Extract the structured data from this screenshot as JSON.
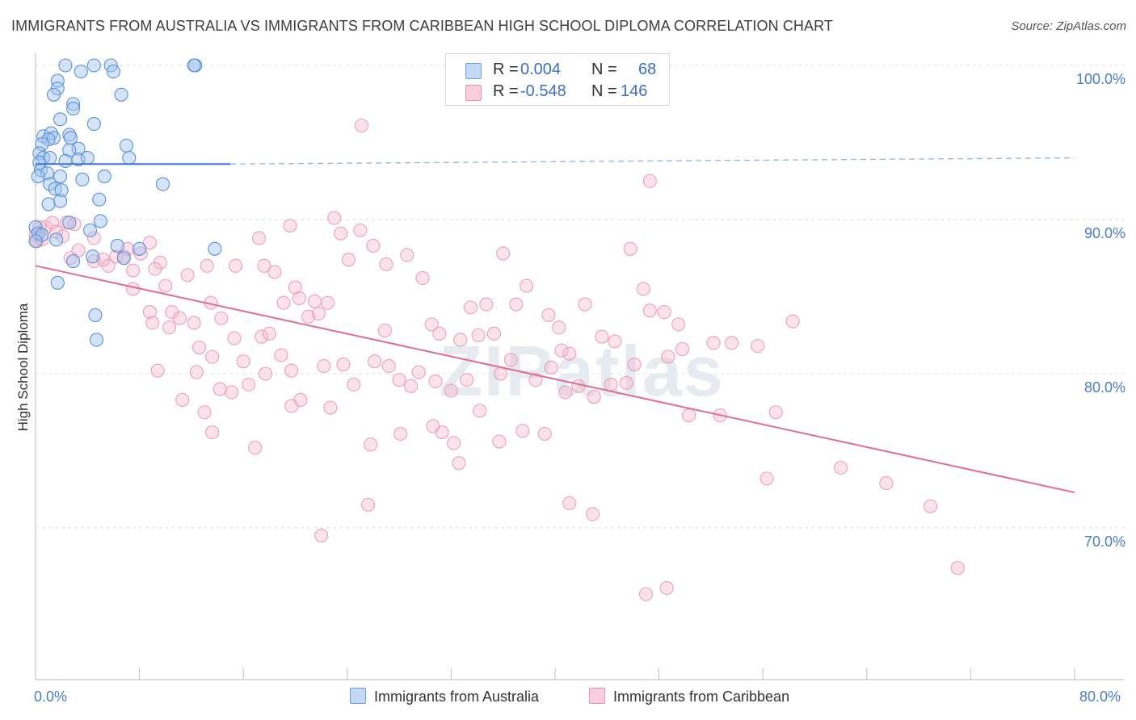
{
  "title": "IMMIGRANTS FROM AUSTRALIA VS IMMIGRANTS FROM CARIBBEAN HIGH SCHOOL DIPLOMA CORRELATION CHART",
  "source": "Source: ZipAtlas.com",
  "watermark": "ZIPatlas",
  "legend": {
    "r_label": "R =",
    "n_label": "N =",
    "rows": [
      {
        "r": "0.004",
        "n": "68",
        "fill": "#c5d9f5",
        "stroke": "#6a9ee0"
      },
      {
        "r": "-0.548",
        "n": "146",
        "fill": "#f9cfdc",
        "stroke": "#e88fab"
      }
    ]
  },
  "bottom_legend": [
    "Immigrants from Australia",
    "Immigrants from Caribbean"
  ],
  "chart_data": {
    "type": "scatter",
    "title": "IMMIGRANTS FROM AUSTRALIA VS IMMIGRANTS FROM CARIBBEAN HIGH SCHOOL DIPLOMA CORRELATION CHART",
    "xlabel": "",
    "ylabel": "High School Diploma",
    "xlim": [
      0,
      80
    ],
    "ylim": [
      60,
      103
    ],
    "x_tick_labels": [
      "0.0%",
      "80.0%"
    ],
    "y_ticks": [
      70,
      80,
      90,
      100
    ],
    "y_tick_labels": [
      "70.0%",
      "80.0%",
      "90.0%",
      "100.0%"
    ],
    "grid": true,
    "legend_position": "top-center",
    "colors": {
      "australia": "#4a86d8",
      "caribbean": "#e87aa0"
    },
    "series": [
      {
        "name": "Immigrants from Australia",
        "color": "#4a86d8",
        "trend": {
          "x0": 0,
          "y0": 93.6,
          "x1": 15,
          "y1": 93.6,
          "dash_to_x": 80,
          "dash_to_y": 94.0
        },
        "points": [
          [
            2.3,
            100.0
          ],
          [
            4.5,
            100.0
          ],
          [
            5.8,
            100.0
          ],
          [
            6.0,
            99.6
          ],
          [
            3.5,
            99.6
          ],
          [
            1.7,
            99.0
          ],
          [
            1.7,
            98.5
          ],
          [
            1.4,
            98.1
          ],
          [
            2.9,
            97.5
          ],
          [
            2.9,
            97.2
          ],
          [
            6.6,
            98.1
          ],
          [
            12.3,
            100.0
          ],
          [
            12.2,
            100.0
          ],
          [
            1.9,
            96.5
          ],
          [
            4.5,
            96.2
          ],
          [
            0.6,
            95.4
          ],
          [
            1.2,
            95.6
          ],
          [
            1.4,
            95.3
          ],
          [
            2.6,
            95.5
          ],
          [
            2.7,
            95.3
          ],
          [
            1.0,
            95.2
          ],
          [
            0.5,
            94.9
          ],
          [
            0.3,
            94.3
          ],
          [
            3.3,
            94.6
          ],
          [
            2.6,
            94.5
          ],
          [
            7.0,
            94.8
          ],
          [
            7.2,
            94.0
          ],
          [
            0.6,
            94.0
          ],
          [
            1.1,
            94.0
          ],
          [
            0.3,
            93.7
          ],
          [
            2.3,
            93.8
          ],
          [
            3.3,
            93.9
          ],
          [
            4.0,
            94.0
          ],
          [
            0.4,
            93.2
          ],
          [
            0.9,
            93.0
          ],
          [
            1.9,
            92.8
          ],
          [
            3.6,
            92.6
          ],
          [
            5.3,
            92.8
          ],
          [
            9.8,
            92.3
          ],
          [
            0.2,
            92.8
          ],
          [
            1.1,
            92.3
          ],
          [
            1.5,
            92.0
          ],
          [
            2.0,
            91.9
          ],
          [
            1.9,
            91.2
          ],
          [
            4.9,
            91.3
          ],
          [
            1.0,
            91.0
          ],
          [
            0.0,
            89.5
          ],
          [
            0.2,
            89.1
          ],
          [
            0.5,
            89.0
          ],
          [
            1.6,
            88.7
          ],
          [
            2.6,
            89.8
          ],
          [
            5.0,
            89.9
          ],
          [
            4.2,
            89.3
          ],
          [
            0.0,
            88.6
          ],
          [
            6.3,
            88.3
          ],
          [
            8.0,
            88.1
          ],
          [
            13.8,
            88.1
          ],
          [
            4.4,
            87.6
          ],
          [
            2.9,
            87.3
          ],
          [
            6.8,
            87.5
          ],
          [
            1.7,
            85.9
          ],
          [
            4.6,
            83.8
          ],
          [
            4.7,
            82.2
          ]
        ]
      },
      {
        "name": "Immigrants from Caribbean",
        "color": "#e87aa0",
        "trend": {
          "x0": 0,
          "y0": 87.0,
          "x1": 80,
          "y1": 72.3
        },
        "points": [
          [
            0.0,
            89.0
          ],
          [
            0.3,
            89.5
          ],
          [
            0.8,
            89.5
          ],
          [
            1.3,
            89.8
          ],
          [
            1.6,
            89.2
          ],
          [
            2.1,
            88.9
          ],
          [
            2.4,
            89.8
          ],
          [
            0.1,
            88.6
          ],
          [
            0.5,
            88.7
          ],
          [
            3.0,
            89.7
          ],
          [
            4.5,
            88.8
          ],
          [
            5.2,
            87.4
          ],
          [
            2.7,
            87.5
          ],
          [
            3.3,
            88.0
          ],
          [
            4.5,
            87.3
          ],
          [
            5.6,
            87.0
          ],
          [
            6.2,
            87.6
          ],
          [
            6.8,
            87.6
          ],
          [
            7.1,
            88.1
          ],
          [
            7.5,
            86.7
          ],
          [
            8.1,
            87.8
          ],
          [
            8.8,
            88.5
          ],
          [
            9.6,
            87.2
          ],
          [
            10.0,
            85.7
          ],
          [
            11.7,
            86.4
          ],
          [
            7.5,
            85.5
          ],
          [
            8.8,
            84.0
          ],
          [
            9.2,
            86.8
          ],
          [
            10.5,
            84.0
          ],
          [
            11.1,
            83.6
          ],
          [
            12.2,
            83.3
          ],
          [
            13.5,
            84.6
          ],
          [
            13.2,
            87.0
          ],
          [
            15.4,
            87.0
          ],
          [
            15.3,
            82.3
          ],
          [
            17.2,
            88.8
          ],
          [
            17.6,
            87.0
          ],
          [
            18.4,
            86.6
          ],
          [
            19.1,
            84.6
          ],
          [
            19.6,
            89.6
          ],
          [
            20.0,
            85.6
          ],
          [
            20.3,
            84.9
          ],
          [
            21.0,
            83.7
          ],
          [
            21.5,
            84.7
          ],
          [
            21.8,
            83.9
          ],
          [
            23.0,
            90.1
          ],
          [
            23.5,
            89.1
          ],
          [
            24.1,
            87.4
          ],
          [
            25.0,
            89.3
          ],
          [
            26.0,
            88.3
          ],
          [
            27.0,
            87.1
          ],
          [
            28.6,
            87.7
          ],
          [
            29.8,
            86.2
          ],
          [
            30.5,
            83.2
          ],
          [
            31.1,
            82.6
          ],
          [
            32.7,
            82.2
          ],
          [
            33.5,
            84.3
          ],
          [
            34.7,
            84.5
          ],
          [
            35.3,
            82.6
          ],
          [
            36.0,
            87.8
          ],
          [
            37.0,
            84.5
          ],
          [
            37.8,
            85.7
          ],
          [
            39.5,
            83.8
          ],
          [
            40.3,
            83.0
          ],
          [
            41.1,
            81.3
          ],
          [
            42.3,
            84.5
          ],
          [
            44.6,
            82.1
          ],
          [
            45.8,
            88.1
          ],
          [
            46.1,
            80.6
          ],
          [
            47.3,
            92.5
          ],
          [
            46.8,
            85.5
          ],
          [
            25.1,
            96.1
          ],
          [
            9.0,
            83.3
          ],
          [
            10.3,
            83.0
          ],
          [
            12.6,
            81.7
          ],
          [
            13.6,
            81.1
          ],
          [
            14.3,
            83.6
          ],
          [
            16.0,
            80.8
          ],
          [
            17.4,
            82.4
          ],
          [
            18.0,
            82.6
          ],
          [
            18.9,
            81.2
          ],
          [
            9.4,
            80.2
          ],
          [
            11.3,
            78.3
          ],
          [
            12.4,
            80.1
          ],
          [
            13.0,
            77.5
          ],
          [
            14.2,
            79.0
          ],
          [
            15.1,
            78.8
          ],
          [
            16.4,
            79.3
          ],
          [
            17.7,
            80.0
          ],
          [
            19.7,
            80.2
          ],
          [
            20.4,
            78.3
          ],
          [
            22.2,
            80.5
          ],
          [
            22.7,
            77.8
          ],
          [
            23.7,
            80.6
          ],
          [
            24.5,
            79.3
          ],
          [
            26.1,
            80.8
          ],
          [
            27.2,
            80.5
          ],
          [
            28.0,
            79.6
          ],
          [
            28.9,
            79.2
          ],
          [
            29.5,
            80.1
          ],
          [
            30.8,
            79.5
          ],
          [
            31.3,
            76.2
          ],
          [
            32.0,
            78.9
          ],
          [
            33.2,
            79.6
          ],
          [
            34.2,
            77.6
          ],
          [
            35.8,
            80.0
          ],
          [
            37.5,
            76.3
          ],
          [
            38.5,
            79.6
          ],
          [
            40.8,
            78.8
          ],
          [
            41.8,
            79.2
          ],
          [
            43.0,
            78.5
          ],
          [
            44.3,
            79.3
          ],
          [
            45.5,
            79.4
          ],
          [
            13.6,
            76.2
          ],
          [
            16.9,
            75.2
          ],
          [
            19.7,
            77.9
          ],
          [
            25.8,
            75.4
          ],
          [
            28.1,
            76.1
          ],
          [
            30.6,
            76.6
          ],
          [
            32.2,
            75.5
          ],
          [
            32.6,
            74.2
          ],
          [
            35.7,
            75.6
          ],
          [
            39.2,
            76.1
          ],
          [
            25.6,
            71.5
          ],
          [
            22.0,
            69.5
          ],
          [
            41.1,
            71.6
          ],
          [
            42.9,
            70.9
          ],
          [
            47.0,
            65.7
          ],
          [
            48.6,
            66.1
          ],
          [
            49.5,
            83.2
          ],
          [
            47.3,
            84.1
          ],
          [
            48.4,
            84.0
          ],
          [
            48.7,
            81.1
          ],
          [
            49.8,
            81.6
          ],
          [
            50.3,
            77.3
          ],
          [
            52.2,
            82.0
          ],
          [
            52.7,
            77.3
          ],
          [
            53.6,
            82.0
          ],
          [
            55.6,
            81.8
          ],
          [
            57.0,
            77.5
          ],
          [
            58.3,
            83.4
          ],
          [
            56.3,
            73.2
          ],
          [
            62.0,
            73.9
          ],
          [
            65.5,
            72.9
          ],
          [
            68.9,
            71.4
          ],
          [
            71.0,
            67.4
          ],
          [
            39.7,
            80.4
          ],
          [
            40.5,
            81.5
          ],
          [
            34.1,
            82.5
          ],
          [
            36.6,
            80.9
          ],
          [
            26.9,
            82.8
          ],
          [
            22.5,
            84.6
          ],
          [
            43.6,
            82.4
          ]
        ]
      }
    ]
  }
}
